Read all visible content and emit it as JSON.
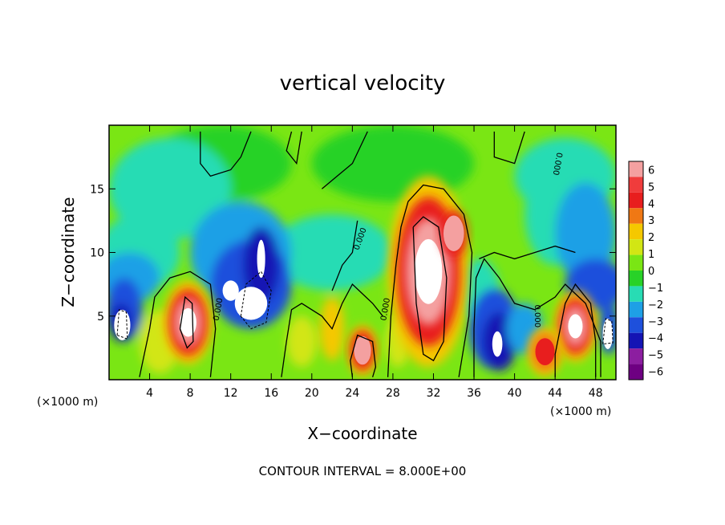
{
  "chart_data": {
    "type": "heatmap",
    "title": "vertical velocity",
    "xlabel": "X−coordinate",
    "ylabel": "Z−coordinate",
    "x_unit_left": "(×1000 m)",
    "x_unit_right": "(×1000 m)",
    "footer": "CONTOUR INTERVAL = 8.000E+00",
    "xlim": [
      0,
      50
    ],
    "ylim": [
      0,
      20
    ],
    "xticks": [
      4,
      8,
      12,
      16,
      20,
      24,
      28,
      32,
      36,
      40,
      44,
      48
    ],
    "xtick_labels": [
      "4",
      "8",
      "12",
      "16",
      "20",
      "24",
      "28",
      "32",
      "36",
      "40",
      "44",
      "48"
    ],
    "yticks": [
      5,
      10,
      15
    ],
    "ytick_labels": [
      "5",
      "10",
      "15"
    ],
    "colorbar": {
      "labels": [
        "6",
        "5",
        "4",
        "3",
        "2",
        "1",
        "0",
        "−1",
        "−2",
        "−3",
        "−4",
        "−5",
        "−6"
      ],
      "values": [
        6,
        5,
        4,
        3,
        2,
        1,
        0,
        -1,
        -2,
        -3,
        -4,
        -5,
        -6
      ],
      "colors": [
        "#f4a0a0",
        "#f03c3c",
        "#e81e1e",
        "#f07814",
        "#f5c800",
        "#d2e614",
        "#7ae614",
        "#28d228",
        "#28dcb4",
        "#1ea0e6",
        "#1e50dc",
        "#1414b4",
        "#8c1ea0",
        "#6e0082"
      ]
    },
    "contour_labels": [
      "0.000",
      "0.000",
      "0.000",
      "0.000",
      "0.000"
    ],
    "features": [
      {
        "x": 31.5,
        "z": 7,
        "w_peak": 8,
        "sign": "positive"
      },
      {
        "x": 7.8,
        "z": 4.5,
        "w_peak": 7,
        "sign": "positive"
      },
      {
        "x": 46,
        "z": 4,
        "w_peak": 7,
        "sign": "positive"
      },
      {
        "x": 25,
        "z": 2,
        "w_peak": 6,
        "sign": "positive"
      },
      {
        "x": 43,
        "z": 2,
        "w_peak": 5,
        "sign": "positive"
      },
      {
        "x": 14.5,
        "z": 6,
        "w_peak": -7,
        "sign": "negative"
      },
      {
        "x": 38,
        "z": 3,
        "w_peak": -6,
        "sign": "negative"
      },
      {
        "x": 1,
        "z": 5,
        "w_peak": -6,
        "sign": "negative"
      },
      {
        "x": 47,
        "z": 12,
        "w_peak": -4,
        "sign": "negative"
      }
    ]
  }
}
